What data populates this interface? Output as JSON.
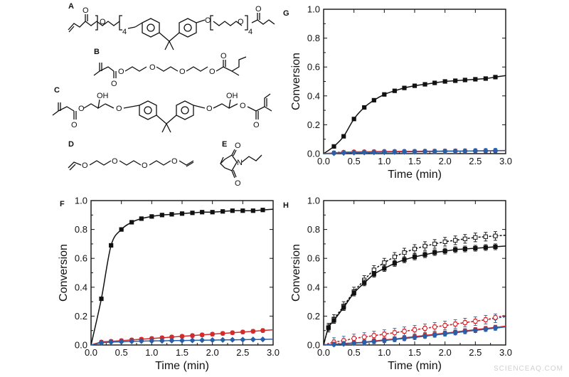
{
  "molecules": [
    {
      "letter": "A",
      "labels": [
        "O",
        "O",
        "4",
        "O",
        "O",
        "4",
        "O"
      ]
    },
    {
      "letter": "B",
      "labels": [
        "O",
        "O",
        "O",
        "O",
        "O",
        "O"
      ]
    },
    {
      "letter": "C",
      "labels": [
        "OH",
        "OH",
        "O",
        "O",
        "O",
        "O",
        "O",
        "O"
      ]
    },
    {
      "letter": "D",
      "labels": [
        "O",
        "O",
        "O",
        "O"
      ]
    },
    {
      "letter": "E",
      "labels": [
        "O",
        "N",
        "O"
      ]
    }
  ],
  "watermark": "SCIENCEAQ.COM",
  "chart_data": [
    {
      "panel": "G",
      "type": "line",
      "xlabel": "Time (min)",
      "ylabel": "Conversion",
      "xlim": [
        0.0,
        3.0
      ],
      "ylim": [
        0.0,
        1.0
      ],
      "xticks": [
        "0.0",
        "0.5",
        "1.0",
        "1.5",
        "2.0",
        "2.5",
        "3.0"
      ],
      "yticks": [
        "0.0",
        "0.2",
        "0.4",
        "0.6",
        "0.8",
        "1.0"
      ],
      "series": [
        {
          "name": "black",
          "color": "#111111",
          "marker": "square-filled",
          "dashed": false,
          "x": [
            0.17,
            0.33,
            0.5,
            0.67,
            0.83,
            1.0,
            1.17,
            1.33,
            1.5,
            1.67,
            1.83,
            2.0,
            2.17,
            2.33,
            2.5,
            2.67,
            2.83
          ],
          "y": [
            0.05,
            0.12,
            0.24,
            0.32,
            0.37,
            0.41,
            0.435,
            0.455,
            0.47,
            0.48,
            0.49,
            0.5,
            0.505,
            0.51,
            0.515,
            0.52,
            0.53
          ]
        },
        {
          "name": "red",
          "color": "#d42a2a",
          "marker": "circle-open",
          "dashed": false,
          "x": [
            0.17,
            0.33,
            0.5,
            0.67,
            0.83,
            1.0,
            1.17,
            1.33,
            1.5,
            1.67,
            1.83,
            2.0,
            2.17,
            2.33,
            2.5,
            2.67,
            2.83
          ],
          "y": [
            0.005,
            0.01,
            0.012,
            0.013,
            0.014,
            0.015,
            0.015,
            0.016,
            0.016,
            0.017,
            0.017,
            0.018,
            0.018,
            0.018,
            0.019,
            0.019,
            0.02
          ]
        },
        {
          "name": "blue",
          "color": "#2860a8",
          "marker": "diamond-filled",
          "dashed": false,
          "x": [
            0.17,
            0.33,
            0.5,
            0.67,
            0.83,
            1.0,
            1.17,
            1.33,
            1.5,
            1.67,
            1.83,
            2.0,
            2.17,
            2.33,
            2.5,
            2.67,
            2.83
          ],
          "y": [
            0.003,
            0.005,
            0.007,
            0.008,
            0.009,
            0.01,
            0.011,
            0.012,
            0.013,
            0.014,
            0.015,
            0.016,
            0.017,
            0.018,
            0.019,
            0.02,
            0.021
          ],
          "err": 0.015
        }
      ]
    },
    {
      "panel": "F",
      "type": "line",
      "xlabel": "Time (min)",
      "ylabel": "Conversion",
      "xlim": [
        0.0,
        3.0
      ],
      "ylim": [
        0.0,
        1.0
      ],
      "xticks": [
        "0.0",
        "0.5",
        "1.0",
        "1.5",
        "2.0",
        "2.5",
        "3.0"
      ],
      "yticks": [
        "0.0",
        "0.2",
        "0.4",
        "0.6",
        "0.8",
        "1.0"
      ],
      "series": [
        {
          "name": "black",
          "color": "#111111",
          "marker": "square-filled",
          "dashed": false,
          "x": [
            0.17,
            0.33,
            0.5,
            0.67,
            0.83,
            1.0,
            1.17,
            1.33,
            1.5,
            1.67,
            1.83,
            2.0,
            2.17,
            2.33,
            2.5,
            2.67,
            2.83
          ],
          "y": [
            0.32,
            0.69,
            0.8,
            0.85,
            0.875,
            0.89,
            0.9,
            0.905,
            0.91,
            0.915,
            0.92,
            0.92,
            0.925,
            0.93,
            0.93,
            0.93,
            0.935
          ]
        },
        {
          "name": "red",
          "color": "#d42a2a",
          "marker": "circle-filled",
          "dashed": false,
          "x": [
            0.17,
            0.33,
            0.5,
            0.67,
            0.83,
            1.0,
            1.17,
            1.33,
            1.5,
            1.67,
            1.83,
            2.0,
            2.17,
            2.33,
            2.5,
            2.67,
            2.83
          ],
          "y": [
            0.02,
            0.025,
            0.03,
            0.035,
            0.04,
            0.045,
            0.05,
            0.055,
            0.06,
            0.065,
            0.07,
            0.075,
            0.08,
            0.085,
            0.09,
            0.095,
            0.1
          ],
          "err": 0.012
        },
        {
          "name": "blue",
          "color": "#2860a8",
          "marker": "diamond-filled",
          "dashed": false,
          "x": [
            0.17,
            0.33,
            0.5,
            0.67,
            0.83,
            1.0,
            1.17,
            1.33,
            1.5,
            1.67,
            1.83,
            2.0,
            2.17,
            2.33,
            2.5,
            2.67,
            2.83
          ],
          "y": [
            0.015,
            0.02,
            0.022,
            0.025,
            0.027,
            0.028,
            0.029,
            0.03,
            0.031,
            0.032,
            0.033,
            0.034,
            0.035,
            0.036,
            0.037,
            0.038,
            0.039
          ]
        }
      ]
    },
    {
      "panel": "H",
      "type": "line",
      "xlabel": "Time (min)",
      "ylabel": "Conversion",
      "xlim": [
        0.0,
        3.0
      ],
      "ylim": [
        0.0,
        1.0
      ],
      "xticks": [
        "0.0",
        "0.5",
        "1.0",
        "1.5",
        "2.0",
        "2.5",
        "3.0"
      ],
      "yticks": [
        "0.0",
        "0.2",
        "0.4",
        "0.6",
        "0.8",
        "1.0"
      ],
      "series": [
        {
          "name": "black-open-dashed",
          "color": "#111111",
          "marker": "square-open",
          "dashed": true,
          "x": [
            0.08,
            0.17,
            0.33,
            0.5,
            0.67,
            0.83,
            1.0,
            1.17,
            1.33,
            1.5,
            1.67,
            1.83,
            2.0,
            2.17,
            2.33,
            2.5,
            2.67,
            2.83
          ],
          "y": [
            0.12,
            0.18,
            0.27,
            0.37,
            0.45,
            0.52,
            0.57,
            0.61,
            0.64,
            0.665,
            0.685,
            0.7,
            0.715,
            0.725,
            0.735,
            0.745,
            0.75,
            0.755
          ],
          "err": 0.03
        },
        {
          "name": "black-filled",
          "color": "#111111",
          "marker": "square-filled",
          "dashed": false,
          "x": [
            0.08,
            0.17,
            0.33,
            0.5,
            0.67,
            0.83,
            1.0,
            1.17,
            1.33,
            1.5,
            1.67,
            1.83,
            2.0,
            2.17,
            2.33,
            2.5,
            2.67,
            2.83
          ],
          "y": [
            0.12,
            0.17,
            0.26,
            0.36,
            0.43,
            0.49,
            0.53,
            0.565,
            0.59,
            0.61,
            0.625,
            0.64,
            0.65,
            0.66,
            0.665,
            0.67,
            0.675,
            0.68
          ],
          "err": 0.02
        },
        {
          "name": "blue-open-dashed",
          "color": "#2860a8",
          "marker": "diamond-open",
          "dashed": true,
          "x": [
            0.17,
            0.33,
            0.5,
            0.67,
            0.83,
            1.0,
            1.17,
            1.33,
            1.5,
            1.67,
            1.83,
            2.0,
            2.17,
            2.33,
            2.5,
            2.67,
            2.83
          ],
          "y": [
            0.02,
            0.03,
            0.045,
            0.055,
            0.065,
            0.075,
            0.085,
            0.095,
            0.105,
            0.115,
            0.125,
            0.135,
            0.145,
            0.155,
            0.165,
            0.175,
            0.185
          ],
          "err": 0.03
        },
        {
          "name": "red-open-dashed",
          "color": "#d42a2a",
          "marker": "circle-open",
          "dashed": true,
          "x": [
            0.17,
            0.33,
            0.5,
            0.67,
            0.83,
            1.0,
            1.17,
            1.33,
            1.5,
            1.67,
            1.83,
            2.0,
            2.17,
            2.33,
            2.5,
            2.67,
            2.83
          ],
          "y": [
            0.02,
            0.03,
            0.045,
            0.055,
            0.065,
            0.075,
            0.085,
            0.095,
            0.105,
            0.115,
            0.125,
            0.135,
            0.145,
            0.155,
            0.165,
            0.175,
            0.19
          ],
          "err": 0.015
        },
        {
          "name": "red-filled",
          "color": "#d42a2a",
          "marker": "circle-filled",
          "dashed": false,
          "x": [
            0.17,
            0.33,
            0.5,
            0.67,
            0.83,
            1.0,
            1.17,
            1.33,
            1.5,
            1.67,
            1.83,
            2.0,
            2.17,
            2.33,
            2.5,
            2.67,
            2.83
          ],
          "y": [
            0.005,
            0.01,
            0.015,
            0.02,
            0.028,
            0.035,
            0.042,
            0.05,
            0.058,
            0.066,
            0.074,
            0.082,
            0.09,
            0.098,
            0.106,
            0.114,
            0.122
          ],
          "err": 0.015
        },
        {
          "name": "blue-filled",
          "color": "#2860a8",
          "marker": "diamond-filled",
          "dashed": false,
          "x": [
            0.17,
            0.33,
            0.5,
            0.67,
            0.83,
            1.0,
            1.17,
            1.33,
            1.5,
            1.67,
            1.83,
            2.0,
            2.17,
            2.33,
            2.5,
            2.67,
            2.83
          ],
          "y": [
            0.003,
            0.007,
            0.012,
            0.017,
            0.024,
            0.031,
            0.038,
            0.045,
            0.053,
            0.061,
            0.069,
            0.077,
            0.085,
            0.093,
            0.101,
            0.109,
            0.117
          ],
          "err": 0.015
        }
      ]
    }
  ]
}
